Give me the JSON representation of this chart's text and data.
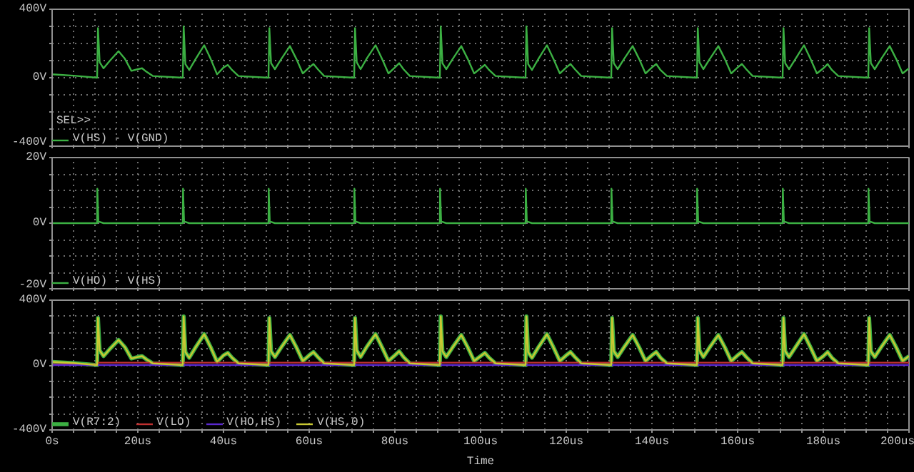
{
  "chart_data": [
    {
      "type": "line",
      "x": [
        0,
        5,
        10.5,
        10.7,
        11.1,
        12,
        13.5,
        15.5,
        17,
        18.5,
        20,
        21,
        22,
        23.5,
        30.5,
        30.7,
        31.1,
        32,
        33.5,
        35.5,
        37,
        38.5,
        40,
        41,
        42,
        43.5,
        50.5,
        50.7,
        51.1,
        52,
        53.5,
        55.5,
        57,
        58.5,
        60,
        61,
        62,
        63.5,
        70.5,
        70.7,
        71.1,
        72,
        73.5,
        75.5,
        77,
        78.5,
        80,
        81,
        82,
        83.5,
        90.5,
        90.7,
        91.1,
        92,
        93.5,
        95.5,
        97,
        98.5,
        100,
        101,
        102,
        103.5,
        110.5,
        110.7,
        111.1,
        112,
        113.5,
        115.5,
        117,
        118.5,
        120,
        121,
        122,
        123.5,
        130.5,
        130.7,
        131.1,
        132,
        133.5,
        135.5,
        137,
        138.5,
        140,
        141,
        142,
        143.5,
        150.5,
        150.7,
        151.1,
        152,
        153.5,
        155.5,
        157,
        158.5,
        160,
        161,
        162,
        163.5,
        170.5,
        170.7,
        171.1,
        172,
        173.5,
        175.5,
        177,
        178.5,
        180,
        181,
        182,
        183.5,
        190.5,
        190.7,
        191.1,
        192,
        193.5,
        195.5,
        197,
        198.5,
        200
      ],
      "series": [
        {
          "name": "V(HS) - V(GND)",
          "color": "#3cb043",
          "values": [
            20,
            12,
            0,
            290,
            90,
            55,
            100,
            155,
            110,
            40,
            50,
            55,
            35,
            10,
            0,
            300,
            80,
            45,
            110,
            190,
            110,
            20,
            60,
            75,
            45,
            10,
            0,
            290,
            85,
            50,
            110,
            185,
            110,
            25,
            60,
            80,
            50,
            10,
            0,
            290,
            90,
            50,
            115,
            190,
            110,
            25,
            60,
            85,
            50,
            10,
            0,
            300,
            85,
            50,
            110,
            185,
            110,
            25,
            55,
            75,
            45,
            10,
            0,
            300,
            80,
            45,
            110,
            190,
            110,
            25,
            60,
            80,
            50,
            10,
            0,
            290,
            85,
            50,
            110,
            185,
            110,
            25,
            60,
            80,
            45,
            10,
            0,
            290,
            90,
            50,
            110,
            185,
            110,
            25,
            60,
            80,
            50,
            10,
            0,
            290,
            85,
            50,
            110,
            190,
            110,
            25,
            55,
            80,
            45,
            10,
            0,
            290,
            85,
            50,
            110,
            185,
            110,
            25,
            55
          ]
        }
      ],
      "xlim": [
        0,
        200
      ],
      "xticks": [
        {
          "value": 0,
          "label": null
        },
        {
          "value": 5,
          "label": null
        },
        {
          "value": 10,
          "label": null
        },
        {
          "value": 15,
          "label": null
        },
        {
          "value": 20,
          "label": null
        },
        {
          "value": 25,
          "label": null
        },
        {
          "value": 30,
          "label": null
        },
        {
          "value": 35,
          "label": null
        },
        {
          "value": 40,
          "label": null
        },
        {
          "value": 45,
          "label": null
        },
        {
          "value": 50,
          "label": null
        },
        {
          "value": 55,
          "label": null
        },
        {
          "value": 60,
          "label": null
        },
        {
          "value": 65,
          "label": null
        },
        {
          "value": 70,
          "label": null
        },
        {
          "value": 75,
          "label": null
        },
        {
          "value": 80,
          "label": null
        },
        {
          "value": 85,
          "label": null
        },
        {
          "value": 90,
          "label": null
        },
        {
          "value": 95,
          "label": null
        },
        {
          "value": 100,
          "label": null
        },
        {
          "value": 105,
          "label": null
        },
        {
          "value": 110,
          "label": null
        },
        {
          "value": 115,
          "label": null
        },
        {
          "value": 120,
          "label": null
        },
        {
          "value": 125,
          "label": null
        },
        {
          "value": 130,
          "label": null
        },
        {
          "value": 135,
          "label": null
        },
        {
          "value": 140,
          "label": null
        },
        {
          "value": 145,
          "label": null
        },
        {
          "value": 150,
          "label": null
        },
        {
          "value": 155,
          "label": null
        },
        {
          "value": 160,
          "label": null
        },
        {
          "value": 165,
          "label": null
        },
        {
          "value": 170,
          "label": null
        },
        {
          "value": 175,
          "label": null
        },
        {
          "value": 180,
          "label": null
        },
        {
          "value": 185,
          "label": null
        },
        {
          "value": 190,
          "label": null
        },
        {
          "value": 195,
          "label": null
        },
        {
          "value": 200,
          "label": null
        }
      ],
      "ylim": [
        -400,
        400
      ],
      "yticks": [
        {
          "value": -400,
          "label": "-400V"
        },
        {
          "value": -300,
          "label": null
        },
        {
          "value": -200,
          "label": null
        },
        {
          "value": -100,
          "label": null
        },
        {
          "value": 0,
          "label": "0V"
        },
        {
          "value": 100,
          "label": null
        },
        {
          "value": 200,
          "label": null
        },
        {
          "value": 300,
          "label": null
        },
        {
          "value": 400,
          "label": "400V"
        }
      ],
      "grid": true,
      "legend": "bottom",
      "tick_labels": "y",
      "line_style": "solid",
      "annotations": [
        "SEL>>"
      ]
    },
    {
      "type": "line",
      "x": [
        0,
        10.5,
        10.55,
        10.8,
        12,
        30.5,
        30.55,
        30.8,
        32,
        50.5,
        50.55,
        50.8,
        52,
        70.5,
        70.55,
        70.8,
        72,
        90.5,
        90.55,
        90.8,
        92,
        110.5,
        110.55,
        110.8,
        112,
        130.5,
        130.55,
        130.8,
        132,
        150.5,
        150.55,
        150.8,
        152,
        170.5,
        170.55,
        170.8,
        172,
        190.5,
        190.55,
        190.8,
        192,
        200
      ],
      "series": [
        {
          "name": "V(HO) - V(HS)",
          "color": "#3cb043",
          "values": [
            0,
            0,
            10.5,
            0.5,
            0,
            0,
            10.5,
            0.5,
            0,
            0,
            10.5,
            0.5,
            0,
            0,
            10.5,
            0.5,
            0,
            0,
            10.5,
            0.5,
            0,
            0,
            10.5,
            0.5,
            0,
            0,
            10.5,
            0.5,
            0,
            0,
            10.5,
            0.5,
            0,
            0,
            10.5,
            0.5,
            0,
            0,
            10.5,
            0.5,
            0,
            0
          ]
        }
      ],
      "xlim": [
        0,
        200
      ],
      "xticks": [
        {
          "value": 0,
          "label": null
        },
        {
          "value": 5,
          "label": null
        },
        {
          "value": 10,
          "label": null
        },
        {
          "value": 15,
          "label": null
        },
        {
          "value": 20,
          "label": null
        },
        {
          "value": 25,
          "label": null
        },
        {
          "value": 30,
          "label": null
        },
        {
          "value": 35,
          "label": null
        },
        {
          "value": 40,
          "label": null
        },
        {
          "value": 45,
          "label": null
        },
        {
          "value": 50,
          "label": null
        },
        {
          "value": 55,
          "label": null
        },
        {
          "value": 60,
          "label": null
        },
        {
          "value": 65,
          "label": null
        },
        {
          "value": 70,
          "label": null
        },
        {
          "value": 75,
          "label": null
        },
        {
          "value": 80,
          "label": null
        },
        {
          "value": 85,
          "label": null
        },
        {
          "value": 90,
          "label": null
        },
        {
          "value": 95,
          "label": null
        },
        {
          "value": 100,
          "label": null
        },
        {
          "value": 105,
          "label": null
        },
        {
          "value": 110,
          "label": null
        },
        {
          "value": 115,
          "label": null
        },
        {
          "value": 120,
          "label": null
        },
        {
          "value": 125,
          "label": null
        },
        {
          "value": 130,
          "label": null
        },
        {
          "value": 135,
          "label": null
        },
        {
          "value": 140,
          "label": null
        },
        {
          "value": 145,
          "label": null
        },
        {
          "value": 150,
          "label": null
        },
        {
          "value": 155,
          "label": null
        },
        {
          "value": 160,
          "label": null
        },
        {
          "value": 165,
          "label": null
        },
        {
          "value": 170,
          "label": null
        },
        {
          "value": 175,
          "label": null
        },
        {
          "value": 180,
          "label": null
        },
        {
          "value": 185,
          "label": null
        },
        {
          "value": 190,
          "label": null
        },
        {
          "value": 195,
          "label": null
        },
        {
          "value": 200,
          "label": null
        }
      ],
      "ylim": [
        -20,
        20
      ],
      "yticks": [
        {
          "value": -20,
          "label": "-20V"
        },
        {
          "value": -15,
          "label": null
        },
        {
          "value": -10,
          "label": null
        },
        {
          "value": -5,
          "label": null
        },
        {
          "value": 0,
          "label": "0V"
        },
        {
          "value": 5,
          "label": null
        },
        {
          "value": 10,
          "label": null
        },
        {
          "value": 15,
          "label": null
        },
        {
          "value": 20,
          "label": "20V"
        }
      ],
      "grid": true,
      "legend": "bottom",
      "tick_labels": "y",
      "line_style": "solid"
    },
    {
      "type": "line",
      "x": [
        0,
        5,
        10.5,
        10.7,
        11.1,
        12,
        13.5,
        15.5,
        17,
        18.5,
        20,
        21,
        22,
        23.5,
        30.5,
        30.7,
        31.1,
        32,
        33.5,
        35.5,
        37,
        38.5,
        40,
        41,
        42,
        43.5,
        50.5,
        50.7,
        51.1,
        52,
        53.5,
        55.5,
        57,
        58.5,
        60,
        61,
        62,
        63.5,
        70.5,
        70.7,
        71.1,
        72,
        73.5,
        75.5,
        77,
        78.5,
        80,
        81,
        82,
        83.5,
        90.5,
        90.7,
        91.1,
        92,
        93.5,
        95.5,
        97,
        98.5,
        100,
        101,
        102,
        103.5,
        110.5,
        110.7,
        111.1,
        112,
        113.5,
        115.5,
        117,
        118.5,
        120,
        121,
        122,
        123.5,
        130.5,
        130.7,
        131.1,
        132,
        133.5,
        135.5,
        137,
        138.5,
        140,
        141,
        142,
        143.5,
        150.5,
        150.7,
        151.1,
        152,
        153.5,
        155.5,
        157,
        158.5,
        160,
        161,
        162,
        163.5,
        170.5,
        170.7,
        171.1,
        172,
        173.5,
        175.5,
        177,
        178.5,
        180,
        181,
        182,
        183.5,
        190.5,
        190.7,
        191.1,
        192,
        193.5,
        195.5,
        197,
        198.5,
        200
      ],
      "series": [
        {
          "name": "V(R7:2)",
          "color": "#3cb043",
          "values": [
            20,
            12,
            0,
            290,
            90,
            55,
            100,
            155,
            110,
            40,
            50,
            55,
            35,
            10,
            0,
            300,
            80,
            45,
            110,
            190,
            110,
            20,
            60,
            75,
            45,
            10,
            0,
            290,
            85,
            50,
            110,
            185,
            110,
            25,
            60,
            80,
            50,
            10,
            0,
            290,
            90,
            50,
            115,
            190,
            110,
            25,
            60,
            85,
            50,
            10,
            0,
            300,
            85,
            50,
            110,
            185,
            110,
            25,
            55,
            75,
            45,
            10,
            0,
            300,
            80,
            45,
            110,
            190,
            110,
            25,
            60,
            80,
            50,
            10,
            0,
            290,
            85,
            50,
            110,
            185,
            110,
            25,
            60,
            80,
            45,
            10,
            0,
            290,
            90,
            50,
            110,
            185,
            110,
            25,
            60,
            80,
            50,
            10,
            0,
            290,
            85,
            50,
            110,
            190,
            110,
            25,
            55,
            80,
            45,
            10,
            0,
            290,
            85,
            50,
            110,
            185,
            110,
            25,
            55
          ]
        },
        {
          "name": "V(LO)",
          "color": "#c03030",
          "values": [
            5,
            5,
            5,
            15,
            15,
            15,
            15,
            15,
            15,
            15,
            15,
            15,
            15,
            15,
            15,
            15,
            15,
            15,
            15,
            15,
            15,
            15,
            15,
            15,
            15,
            15,
            15,
            15,
            15,
            15,
            15,
            15,
            15,
            15,
            15,
            15,
            15,
            15,
            15,
            15,
            15,
            15,
            15,
            15,
            15,
            15,
            15,
            15,
            15,
            15,
            15,
            15,
            15,
            15,
            15,
            15,
            15,
            15,
            15,
            15,
            15,
            15,
            15,
            15,
            15,
            15,
            15,
            15,
            15,
            15,
            15,
            15,
            15,
            15,
            15,
            15,
            15,
            15,
            15,
            15,
            15,
            15,
            15,
            15,
            15,
            15,
            15,
            15,
            15,
            15,
            15,
            15,
            15,
            15,
            15,
            15,
            15,
            15,
            15,
            15,
            15,
            15,
            15,
            15,
            15,
            15,
            15,
            15,
            15,
            15,
            15,
            15,
            15,
            15,
            15,
            15,
            15,
            15,
            15
          ]
        },
        {
          "name": "V(HO,HS)",
          "color": "#5a28d0",
          "values": [
            0,
            0,
            0,
            0,
            0,
            0,
            0,
            0,
            0,
            0,
            0,
            0,
            0,
            0,
            0,
            0,
            0,
            0,
            0,
            0,
            0,
            0,
            0,
            0,
            0,
            0,
            0,
            0,
            0,
            0,
            0,
            0,
            0,
            0,
            0,
            0,
            0,
            0,
            0,
            0,
            0,
            0,
            0,
            0,
            0,
            0,
            0,
            0,
            0,
            0,
            0,
            0,
            0,
            0,
            0,
            0,
            0,
            0,
            0,
            0,
            0,
            0,
            0,
            0,
            0,
            0,
            0,
            0,
            0,
            0,
            0,
            0,
            0,
            0,
            0,
            0,
            0,
            0,
            0,
            0,
            0,
            0,
            0,
            0,
            0,
            0,
            0,
            0,
            0,
            0,
            0,
            0,
            0,
            0,
            0,
            0,
            0,
            0,
            0,
            0,
            0,
            0,
            0,
            0,
            0,
            0,
            0,
            0,
            0,
            0,
            0,
            0,
            0,
            0,
            0,
            0,
            0,
            0,
            0
          ]
        },
        {
          "name": "V(HS,0)",
          "color": "#c8c832",
          "values": [
            20,
            12,
            0,
            290,
            90,
            55,
            100,
            155,
            110,
            40,
            50,
            55,
            35,
            10,
            0,
            300,
            80,
            45,
            110,
            190,
            110,
            20,
            60,
            75,
            45,
            10,
            0,
            290,
            85,
            50,
            110,
            185,
            110,
            25,
            60,
            80,
            50,
            10,
            0,
            290,
            90,
            50,
            115,
            190,
            110,
            25,
            60,
            85,
            50,
            10,
            0,
            300,
            85,
            50,
            110,
            185,
            110,
            25,
            55,
            75,
            45,
            10,
            0,
            300,
            80,
            45,
            110,
            190,
            110,
            25,
            60,
            80,
            50,
            10,
            0,
            290,
            85,
            50,
            110,
            185,
            110,
            25,
            60,
            80,
            45,
            10,
            0,
            290,
            90,
            50,
            110,
            185,
            110,
            25,
            60,
            80,
            50,
            10,
            0,
            290,
            85,
            50,
            110,
            190,
            110,
            25,
            55,
            80,
            45,
            10,
            0,
            290,
            85,
            50,
            110,
            185,
            110,
            25,
            55
          ]
        }
      ],
      "xlim": [
        0,
        200
      ],
      "xticks": [
        {
          "value": 0,
          "label": "0s"
        },
        {
          "value": 5,
          "label": null
        },
        {
          "value": 10,
          "label": null
        },
        {
          "value": 15,
          "label": null
        },
        {
          "value": 20,
          "label": "20us"
        },
        {
          "value": 25,
          "label": null
        },
        {
          "value": 30,
          "label": null
        },
        {
          "value": 35,
          "label": null
        },
        {
          "value": 40,
          "label": "40us"
        },
        {
          "value": 45,
          "label": null
        },
        {
          "value": 50,
          "label": null
        },
        {
          "value": 55,
          "label": null
        },
        {
          "value": 60,
          "label": "60us"
        },
        {
          "value": 65,
          "label": null
        },
        {
          "value": 70,
          "label": null
        },
        {
          "value": 75,
          "label": null
        },
        {
          "value": 80,
          "label": "80us"
        },
        {
          "value": 85,
          "label": null
        },
        {
          "value": 90,
          "label": null
        },
        {
          "value": 95,
          "label": null
        },
        {
          "value": 100,
          "label": "100us"
        },
        {
          "value": 105,
          "label": null
        },
        {
          "value": 110,
          "label": null
        },
        {
          "value": 115,
          "label": null
        },
        {
          "value": 120,
          "label": "120us"
        },
        {
          "value": 125,
          "label": null
        },
        {
          "value": 130,
          "label": null
        },
        {
          "value": 135,
          "label": null
        },
        {
          "value": 140,
          "label": "140us"
        },
        {
          "value": 145,
          "label": null
        },
        {
          "value": 150,
          "label": null
        },
        {
          "value": 155,
          "label": null
        },
        {
          "value": 160,
          "label": "160us"
        },
        {
          "value": 165,
          "label": null
        },
        {
          "value": 170,
          "label": null
        },
        {
          "value": 175,
          "label": null
        },
        {
          "value": 180,
          "label": "180us"
        },
        {
          "value": 185,
          "label": null
        },
        {
          "value": 190,
          "label": null
        },
        {
          "value": 195,
          "label": null
        },
        {
          "value": 200,
          "label": "200us"
        }
      ],
      "ylim": [
        -400,
        400
      ],
      "yticks": [
        {
          "value": -400,
          "label": "-400V"
        },
        {
          "value": -300,
          "label": null
        },
        {
          "value": -200,
          "label": null
        },
        {
          "value": -100,
          "label": null
        },
        {
          "value": 0,
          "label": "0V"
        },
        {
          "value": 100,
          "label": null
        },
        {
          "value": 200,
          "label": null
        },
        {
          "value": 300,
          "label": null
        },
        {
          "value": 400,
          "label": "400V"
        }
      ],
      "grid": true,
      "legend": "bottom",
      "xlabel": "Time",
      "line_style": "solid"
    }
  ]
}
